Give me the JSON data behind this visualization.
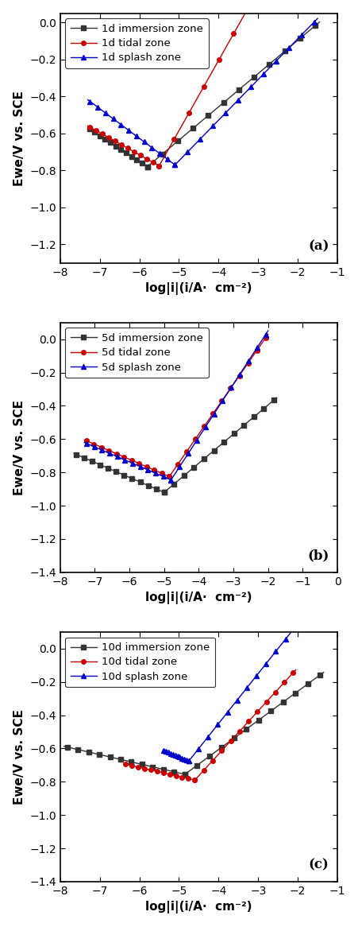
{
  "panels": [
    {
      "label": "(a)",
      "xlim": [
        -8,
        -1
      ],
      "ylim": [
        -1.3,
        0.05
      ],
      "yticks": [
        0.0,
        -0.2,
        -0.4,
        -0.6,
        -0.8,
        -1.0,
        -1.2
      ],
      "xticks": [
        -8,
        -7,
        -6,
        -5,
        -4,
        -3,
        -2,
        -1
      ],
      "series": [
        {
          "name": "1d immersion zone",
          "color": "#333333",
          "marker": "s",
          "Ecorr": -0.78,
          "log_icorr": -5.8,
          "ba": 0.18,
          "bc": 0.14,
          "log_i_an_end": -1.45,
          "log_i_cat_start": -7.3
        },
        {
          "name": "1d tidal zone",
          "color": "#cc0000",
          "marker": "o",
          "Ecorr": -0.775,
          "log_icorr": -5.5,
          "ba": 0.38,
          "bc": 0.12,
          "log_i_an_end": -1.25,
          "log_i_cat_start": -7.3
        },
        {
          "name": "1d splash zone",
          "color": "#0000cc",
          "marker": "^",
          "Ecorr": -0.77,
          "log_icorr": -5.1,
          "ba": 0.22,
          "bc": 0.16,
          "log_i_an_end": -1.5,
          "log_i_cat_start": -7.3
        }
      ]
    },
    {
      "label": "(b)",
      "xlim": [
        -8,
        0
      ],
      "ylim": [
        -1.4,
        0.1
      ],
      "yticks": [
        0.0,
        -0.2,
        -0.4,
        -0.6,
        -0.8,
        -1.0,
        -1.2,
        -1.4
      ],
      "xticks": [
        -8,
        -7,
        -6,
        -5,
        -4,
        -3,
        -2,
        -1,
        0
      ],
      "series": [
        {
          "name": "5d immersion zone",
          "color": "#333333",
          "marker": "s",
          "Ecorr": -0.92,
          "log_icorr": -5.0,
          "ba": 0.175,
          "bc": 0.09,
          "log_i_an_end": -1.75,
          "log_i_cat_start": -7.6
        },
        {
          "name": "5d tidal zone",
          "color": "#cc0000",
          "marker": "o",
          "Ecorr": -0.825,
          "log_icorr": -4.85,
          "ba": 0.3,
          "bc": 0.09,
          "log_i_an_end": -2.0,
          "log_i_cat_start": -7.3
        },
        {
          "name": "5d splash zone",
          "color": "#0000cc",
          "marker": "^",
          "Ecorr": -0.845,
          "log_icorr": -4.8,
          "ba": 0.32,
          "bc": 0.09,
          "log_i_an_end": -2.0,
          "log_i_cat_start": -7.3
        }
      ]
    },
    {
      "label": "(c)",
      "xlim": [
        -8,
        -1
      ],
      "ylim": [
        -1.4,
        0.1
      ],
      "yticks": [
        0.0,
        -0.2,
        -0.4,
        -0.6,
        -0.8,
        -1.0,
        -1.2,
        -1.4
      ],
      "xticks": [
        -8,
        -7,
        -6,
        -5,
        -4,
        -3,
        -2,
        -1
      ],
      "series": [
        {
          "name": "10d immersion zone",
          "color": "#333333",
          "marker": "s",
          "Ecorr": -0.755,
          "log_icorr": -4.85,
          "ba": 0.175,
          "bc": 0.055,
          "log_i_an_end": -1.35,
          "log_i_cat_start": -7.9
        },
        {
          "name": "10d tidal zone",
          "color": "#cc0000",
          "marker": "o",
          "Ecorr": -0.79,
          "log_icorr": -4.6,
          "ba": 0.26,
          "bc": 0.055,
          "log_i_an_end": -2.05,
          "log_i_cat_start": -6.4
        },
        {
          "name": "10d splash zone",
          "color": "#0000cc",
          "marker": "^",
          "Ecorr": -0.675,
          "log_icorr": -4.75,
          "ba": 0.3,
          "bc": 0.1,
          "log_i_an_end": -2.0,
          "log_i_cat_start": -5.4
        }
      ]
    }
  ],
  "ylabel": "Ewe/V vs. SCE",
  "xlabel": "log|i|(i/A·  cm⁻²)",
  "background_color": "#ffffff",
  "marker_size": 4,
  "line_width": 1.0,
  "marker_every": 7
}
